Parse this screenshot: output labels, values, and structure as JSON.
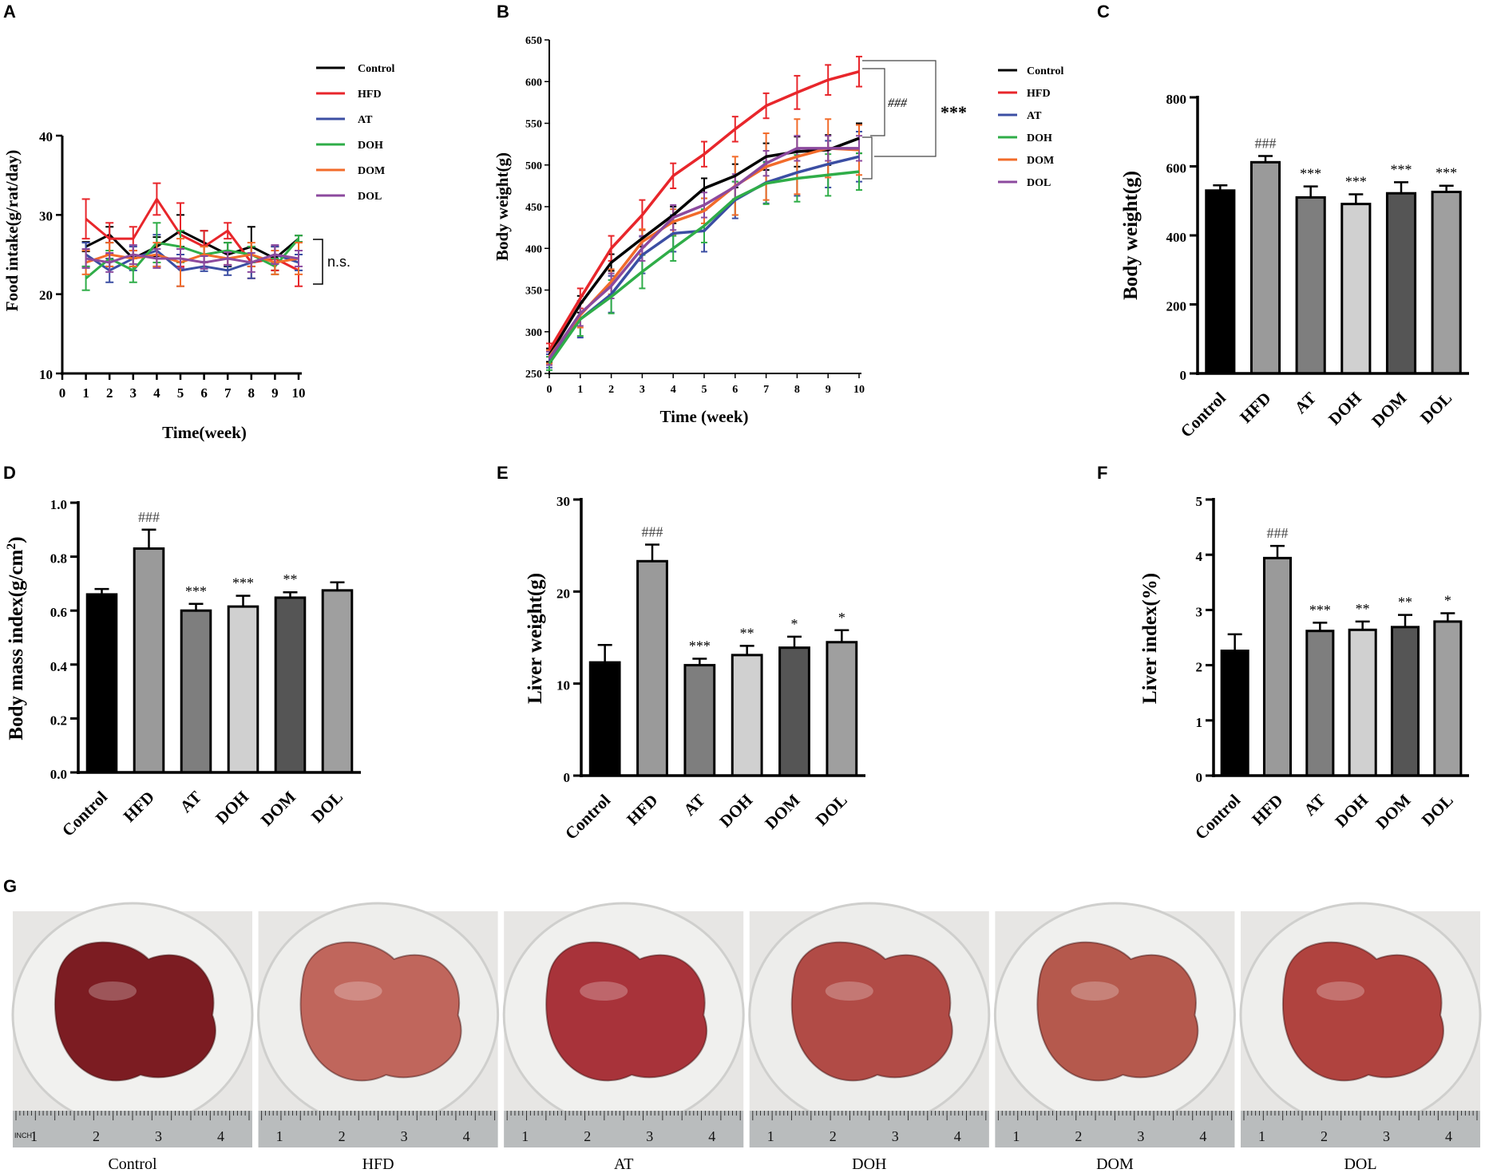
{
  "panels": [
    "A",
    "B",
    "C",
    "D",
    "E",
    "F",
    "G"
  ],
  "legend_groups": [
    {
      "name": "Control",
      "color": "#000000"
    },
    {
      "name": "HFD",
      "color": "#e8262b"
    },
    {
      "name": "AT",
      "color": "#3b4ea3"
    },
    {
      "name": "DOH",
      "color": "#2fad48"
    },
    {
      "name": "DOM",
      "color": "#f26b2a"
    },
    {
      "name": "DOL",
      "color": "#8c4a9e"
    }
  ],
  "chart_data": [
    {
      "id": "A",
      "type": "line",
      "xlabel": "Time(week)",
      "ylabel": "Food intake(g/rat/day)",
      "x": [
        1,
        2,
        3,
        4,
        5,
        6,
        7,
        8,
        9,
        10
      ],
      "xticks": [
        "0",
        "1",
        "2",
        "3",
        "4",
        "5",
        "6",
        "7",
        "8",
        "9",
        "10"
      ],
      "ylim": [
        10,
        40
      ],
      "yticks": [
        10,
        20,
        30,
        40
      ],
      "annotation": "n.s.",
      "series": [
        {
          "name": "Control",
          "values": [
            26,
            27.5,
            24.5,
            26,
            28,
            26.5,
            25,
            26,
            24.5,
            27
          ],
          "err": [
            0.6,
            1,
            1,
            1.2,
            2,
            1.5,
            1.5,
            2.5,
            1.5,
            0.4
          ]
        },
        {
          "name": "HFD",
          "values": [
            29.5,
            27,
            27,
            32,
            27.5,
            26,
            28,
            24,
            24.5,
            23
          ],
          "err": [
            2.5,
            2,
            1.5,
            2,
            4,
            2,
            1,
            2,
            1.5,
            2
          ]
        },
        {
          "name": "AT",
          "values": [
            25,
            23,
            24.5,
            25.5,
            23,
            23.5,
            23,
            24,
            25,
            24
          ],
          "err": [
            1.5,
            1.5,
            1.5,
            2,
            2,
            0.6,
            0.6,
            2,
            1,
            1
          ]
        },
        {
          "name": "DOH",
          "values": [
            22,
            24.5,
            23,
            26.5,
            26,
            25,
            25.5,
            25,
            23.5,
            27
          ],
          "err": [
            1.5,
            1,
            1.5,
            2.5,
            2,
            1,
            1,
            1,
            1,
            0.4
          ]
        },
        {
          "name": "DOM",
          "values": [
            24,
            25,
            24.5,
            25,
            24,
            25,
            24.5,
            25,
            24,
            24.5
          ],
          "err": [
            1.5,
            1.5,
            1,
            1.5,
            3,
            1,
            0.8,
            1.5,
            1.5,
            2
          ]
        },
        {
          "name": "DOL",
          "values": [
            24.5,
            24,
            25,
            24.5,
            24.5,
            24,
            24.5,
            24,
            25,
            24.5
          ],
          "err": [
            1.2,
            1.2,
            1.2,
            1.2,
            1.2,
            0.8,
            0.8,
            1.2,
            1.2,
            1
          ]
        }
      ]
    },
    {
      "id": "B",
      "type": "line",
      "xlabel": "Time (week)",
      "ylabel": "Body weight(g)",
      "x": [
        0,
        1,
        2,
        3,
        4,
        5,
        6,
        7,
        8,
        9,
        10
      ],
      "ylim": [
        250,
        650
      ],
      "yticks": [
        250,
        300,
        350,
        400,
        450,
        500,
        550,
        600,
        650
      ],
      "annotations": [
        "###",
        "***"
      ],
      "series": [
        {
          "name": "Control",
          "values": [
            272,
            333,
            383,
            412,
            440,
            472,
            487,
            510,
            516,
            518,
            532
          ],
          "err": [
            8,
            10,
            10,
            10,
            10,
            12,
            14,
            16,
            18,
            18,
            18
          ]
        },
        {
          "name": "HFD",
          "values": [
            278,
            340,
            400,
            440,
            487,
            513,
            543,
            571,
            587,
            602,
            612
          ],
          "err": [
            8,
            12,
            15,
            18,
            15,
            15,
            15,
            15,
            20,
            18,
            18
          ]
        },
        {
          "name": "AT",
          "values": [
            265,
            315,
            345,
            392,
            418,
            421,
            458,
            479,
            491,
            501,
            510
          ],
          "err": [
            8,
            22,
            22,
            22,
            22,
            25,
            22,
            25,
            28,
            28,
            30
          ]
        },
        {
          "name": "DOH",
          "values": [
            262,
            315,
            342,
            372,
            400,
            427,
            460,
            478,
            484,
            488,
            492
          ],
          "err": [
            8,
            20,
            20,
            20,
            15,
            20,
            20,
            25,
            28,
            25,
            22
          ]
        },
        {
          "name": "DOM",
          "values": [
            270,
            320,
            360,
            408,
            432,
            445,
            475,
            498,
            510,
            520,
            518
          ],
          "err": [
            8,
            15,
            15,
            15,
            15,
            15,
            35,
            40,
            45,
            35,
            30
          ]
        },
        {
          "name": "DOL",
          "values": [
            268,
            322,
            355,
            400,
            437,
            452,
            474,
            502,
            520,
            520,
            520
          ],
          "err": [
            8,
            15,
            15,
            15,
            15,
            15,
            15,
            15,
            15,
            15,
            15
          ]
        }
      ]
    },
    {
      "id": "C",
      "type": "bar",
      "ylabel": "Body weight(g)",
      "categories": [
        "Control",
        "HFD",
        "AT",
        "DOH",
        "DOM",
        "DOL"
      ],
      "values": [
        530,
        612,
        510,
        491,
        522,
        526
      ],
      "err": [
        15,
        18,
        32,
        28,
        32,
        18
      ],
      "sig": [
        "",
        "###",
        "***",
        "***",
        "***",
        "***"
      ],
      "fills": [
        "#000000",
        "#9a9a9a",
        "#7e7e7e",
        "#d0d0d0",
        "#555555",
        "#9f9f9f"
      ],
      "ylim": [
        0,
        800
      ],
      "yticks": [
        0,
        200,
        400,
        600,
        800
      ]
    },
    {
      "id": "D",
      "type": "bar",
      "ylabel": "Body mass index(g/cm2)",
      "ylabel_main": "Body mass index(g/cm",
      "ylabel_sup": "2",
      "ylabel_end": ")",
      "categories": [
        "Control",
        "HFD",
        "AT",
        "DOH",
        "DOM",
        "DOL"
      ],
      "values": [
        0.66,
        0.83,
        0.6,
        0.615,
        0.648,
        0.675
      ],
      "err": [
        0.02,
        0.07,
        0.025,
        0.04,
        0.02,
        0.03
      ],
      "sig": [
        "",
        "###",
        "***",
        "***",
        "**",
        ""
      ],
      "fills": [
        "#000000",
        "#9a9a9a",
        "#7e7e7e",
        "#d0d0d0",
        "#555555",
        "#9f9f9f"
      ],
      "ylim": [
        0,
        1.0
      ],
      "yticks": [
        "0.0",
        "0.2",
        "0.4",
        "0.6",
        "0.8",
        "1.0"
      ]
    },
    {
      "id": "E",
      "type": "bar",
      "ylabel": "Liver weight(g)",
      "categories": [
        "Control",
        "HFD",
        "AT",
        "DOH",
        "DOM",
        "DOL"
      ],
      "values": [
        12.3,
        23.3,
        12.0,
        13.1,
        13.9,
        14.5
      ],
      "err": [
        1.9,
        1.8,
        0.7,
        1.0,
        1.2,
        1.3
      ],
      "sig": [
        "",
        "###",
        "***",
        "**",
        "*",
        "*"
      ],
      "fills": [
        "#000000",
        "#9a9a9a",
        "#7e7e7e",
        "#d0d0d0",
        "#555555",
        "#9f9f9f"
      ],
      "ylim": [
        0,
        30
      ],
      "yticks": [
        0,
        10,
        20,
        30
      ]
    },
    {
      "id": "F",
      "type": "bar",
      "ylabel": "Liver index(%)",
      "categories": [
        "Control",
        "HFD",
        "AT",
        "DOH",
        "DOM",
        "DOL"
      ],
      "values": [
        2.26,
        3.94,
        2.62,
        2.64,
        2.69,
        2.79
      ],
      "err": [
        0.3,
        0.22,
        0.15,
        0.15,
        0.22,
        0.15
      ],
      "sig": [
        "",
        "###",
        "***",
        "**",
        "**",
        "*"
      ],
      "fills": [
        "#000000",
        "#9a9a9a",
        "#7e7e7e",
        "#d0d0d0",
        "#555555",
        "#9f9f9f"
      ],
      "ylim": [
        0,
        5
      ],
      "yticks": [
        0,
        1,
        2,
        3,
        4,
        5
      ]
    }
  ],
  "photos": [
    {
      "label": "Control",
      "dish": "#f1f1ef",
      "liver": "#7c1c22"
    },
    {
      "label": "HFD",
      "dish": "#eeeeec",
      "liver": "#c0665c"
    },
    {
      "label": "AT",
      "dish": "#f0f0ee",
      "liver": "#a8333a"
    },
    {
      "label": "DOH",
      "dish": "#ededeb",
      "liver": "#b14b46"
    },
    {
      "label": "DOM",
      "dish": "#f0f0ee",
      "liver": "#b5594d"
    },
    {
      "label": "DOL",
      "dish": "#eeeeec",
      "liver": "#b0433f"
    }
  ],
  "ruler_marks": [
    "1",
    "2",
    "3",
    "4"
  ],
  "ruler_text": "INCH"
}
